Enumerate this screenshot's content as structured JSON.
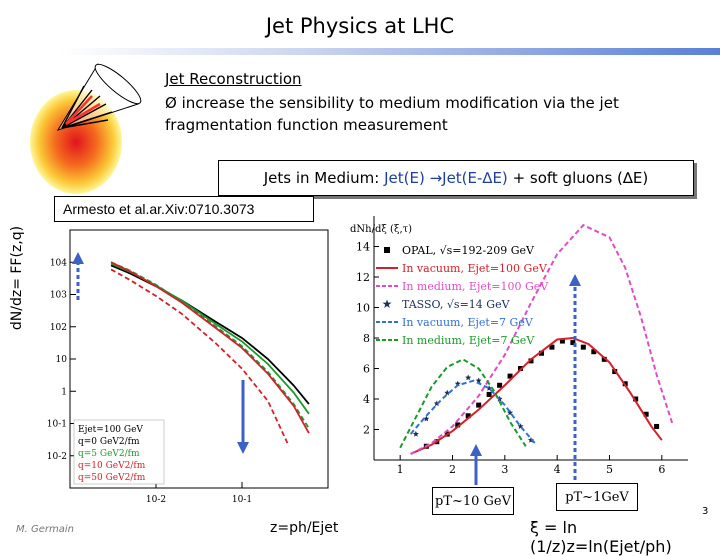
{
  "header": {
    "title": "Jet Physics at LHC"
  },
  "reconstruction": {
    "heading": "Jet Reconstruction",
    "bullet_symbol": "Ø",
    "bullet_text": "increase the sensibility to medium modification via the jet fragmentation function measurement"
  },
  "medium_box": {
    "prefix": "Jets in Medium: ",
    "formula": "Jet(E) →Jet(E-∆E)",
    "suffix": " + soft gluons (∆E)"
  },
  "citation": "Armesto et al.ar.Xiv:0710.3073",
  "left_axis_label": "dN/dz= FF(z,q)",
  "pt_labels": {
    "left": "pT~10 GeV",
    "right": "pT~1GeV"
  },
  "footer": {
    "author": "M. Germain",
    "z_formula": "z=ph/Ejet",
    "xi_formula": "ξ = ln (1/z)z=ln(Ejet/ph)",
    "page": "3"
  },
  "chart_data": [
    {
      "type": "line",
      "x_scale": "log",
      "y_scale": "log",
      "xlim": [
        0.001,
        1
      ],
      "ylim": [
        0.001,
        100000
      ],
      "x_tick_labels": [
        "10-2",
        "10-1"
      ],
      "y_tick_labels": [
        "104",
        "103",
        "102",
        "10",
        "1",
        "10-1",
        "10-2"
      ],
      "legend_lines": [
        "Ejet=100 GeV",
        "q=0 GeV2/fm",
        "q=5 GeV2/fm",
        "q=10 GeV2/fm",
        "q=50 GeV2/fm"
      ],
      "series": [
        {
          "color": "#000000",
          "dash": "solid",
          "x": [
            0.003,
            0.005,
            0.01,
            0.02,
            0.05,
            0.1,
            0.2,
            0.4,
            0.6
          ],
          "y": [
            8000,
            4500,
            1800,
            650,
            140,
            45,
            10,
            1.5,
            0.4
          ]
        },
        {
          "color": "#1a9a2a",
          "dash": "solid",
          "x": [
            0.003,
            0.005,
            0.01,
            0.02,
            0.05,
            0.1,
            0.2,
            0.4,
            0.6
          ],
          "y": [
            9000,
            5000,
            1900,
            640,
            120,
            35,
            7,
            0.9,
            0.2
          ]
        },
        {
          "color": "#1a9a2a",
          "dash": "dashed",
          "x": [
            0.003,
            0.005,
            0.01,
            0.02,
            0.05,
            0.1,
            0.2,
            0.4,
            0.6
          ],
          "y": [
            10000,
            5500,
            2000,
            600,
            100,
            25,
            4,
            0.4,
            0.07
          ]
        },
        {
          "color": "#d4202a",
          "dash": "solid",
          "x": [
            0.003,
            0.005,
            0.01,
            0.02,
            0.05,
            0.1,
            0.2,
            0.4,
            0.6
          ],
          "y": [
            10000,
            5200,
            1800,
            560,
            90,
            22,
            3.5,
            0.35,
            0.05
          ]
        },
        {
          "color": "#d4202a",
          "dash": "dashed",
          "x": [
            0.003,
            0.005,
            0.01,
            0.02,
            0.05,
            0.1,
            0.2,
            0.35
          ],
          "y": [
            6000,
            2800,
            900,
            250,
            30,
            5,
            0.5,
            0.02
          ]
        }
      ]
    },
    {
      "type": "line",
      "xlim": [
        0.5,
        6.5
      ],
      "ylim": [
        0,
        16
      ],
      "x_ticks": [
        1,
        2,
        3,
        4,
        5,
        6
      ],
      "y_ticks": [
        2,
        4,
        6,
        8,
        10,
        12,
        14
      ],
      "ylabel": "dNh/dξ (ξ,τ)",
      "legend_placement": "top-left",
      "series": [
        {
          "name": "OPAL, √s=192-209 GeV",
          "kind": "points",
          "marker": "square",
          "color": "#000000",
          "x": [
            1.5,
            1.7,
            1.9,
            2.1,
            2.3,
            2.5,
            2.7,
            2.9,
            3.1,
            3.3,
            3.5,
            3.7,
            3.9,
            4.1,
            4.3,
            4.5,
            4.7,
            4.9,
            5.1,
            5.3,
            5.5,
            5.7,
            5.9
          ],
          "y": [
            0.9,
            1.2,
            1.7,
            2.3,
            2.9,
            3.6,
            4.3,
            4.9,
            5.5,
            6.0,
            6.5,
            7.0,
            7.4,
            7.8,
            7.7,
            7.4,
            7.1,
            6.6,
            5.8,
            5.0,
            4.0,
            3.0,
            2.2
          ]
        },
        {
          "name": "In vacuum, Ejet=100 GeV",
          "kind": "line",
          "color": "#d4202a",
          "dash": "solid",
          "x": [
            1.2,
            1.6,
            2.0,
            2.5,
            3.0,
            3.5,
            4.0,
            4.3,
            4.6,
            5.0,
            5.4,
            5.8,
            6.0
          ],
          "y": [
            0.4,
            1.0,
            1.9,
            3.3,
            4.9,
            6.6,
            7.9,
            8.0,
            7.6,
            6.4,
            4.4,
            2.2,
            1.3
          ]
        },
        {
          "name": "In medium, Ejet=100 GeV",
          "kind": "line",
          "color": "#e04cc8",
          "dash": "dashed",
          "x": [
            1.2,
            1.6,
            2.0,
            2.5,
            3.0,
            3.5,
            4.0,
            4.5,
            5.0,
            5.3,
            5.6,
            5.9,
            6.2
          ],
          "y": [
            0.4,
            1.1,
            2.2,
            4.2,
            6.9,
            10.3,
            13.5,
            15.4,
            14.6,
            12.6,
            9.4,
            5.6,
            2.4
          ]
        },
        {
          "name": "TASSO, √s=14 GeV",
          "kind": "points",
          "marker": "star",
          "color": "#1c2f55",
          "x": [
            1.3,
            1.5,
            1.7,
            1.9,
            2.1,
            2.3,
            2.5,
            2.7,
            2.9,
            3.1,
            3.3,
            3.5
          ],
          "y": [
            1.7,
            2.7,
            3.7,
            4.4,
            5.0,
            5.4,
            5.2,
            4.7,
            4.0,
            3.1,
            2.2,
            1.3
          ]
        },
        {
          "name": "In vacuum, Ejet=7 GeV",
          "kind": "line",
          "color": "#3070d0",
          "dash": "dashed",
          "x": [
            1.2,
            1.5,
            1.8,
            2.1,
            2.4,
            2.7,
            3.0,
            3.3,
            3.6
          ],
          "y": [
            1.7,
            2.9,
            4.0,
            4.9,
            5.2,
            4.7,
            3.6,
            2.2,
            1.0
          ]
        },
        {
          "name": "In medium, Ejet=7 GeV",
          "kind": "line",
          "color": "#1a9a2a",
          "dash": "dashed",
          "x": [
            1.0,
            1.3,
            1.6,
            1.9,
            2.2,
            2.5,
            2.8,
            3.1,
            3.4
          ],
          "y": [
            0.8,
            2.8,
            4.8,
            6.1,
            6.6,
            6.0,
            4.5,
            2.5,
            0.9
          ]
        }
      ]
    }
  ]
}
